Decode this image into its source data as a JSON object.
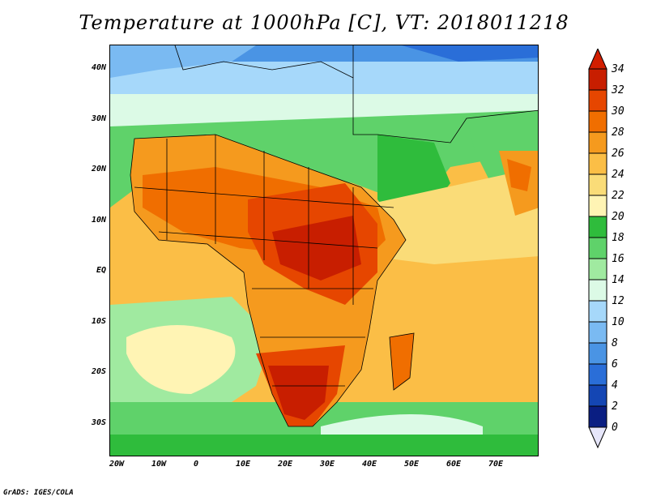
{
  "title": "Temperature at 1000hPa [C], VT: 2018011218",
  "footer": "GrADS: IGES/COLA",
  "map": {
    "variable": "Temperature at 1000hPa",
    "units": "C",
    "valid_time": "2018011218",
    "lon_labels": [
      "20W",
      "10W",
      "0",
      "10E",
      "20E",
      "30E",
      "40E",
      "50E",
      "60E",
      "70E"
    ],
    "lat_labels": [
      "40N",
      "30N",
      "20N",
      "10N",
      "EQ",
      "10S",
      "20S",
      "30S"
    ]
  },
  "colorbar": {
    "levels": [
      "34",
      "32",
      "30",
      "28",
      "26",
      "24",
      "22",
      "20",
      "18",
      "16",
      "14",
      "12",
      "10",
      "8",
      "6",
      "4",
      "2",
      "0"
    ],
    "colors_top_to_bottom": [
      "#c81e00",
      "#e64600",
      "#f06e00",
      "#f59a1e",
      "#fbbe46",
      "#fadc78",
      "#fff4b4",
      "#2fbc3c",
      "#5fd26a",
      "#a0eaa0",
      "#dcfae6",
      "#a6d8fa",
      "#7abaf2",
      "#4a94e4",
      "#2a6ed8",
      "#1446b4",
      "#0a1e82"
    ],
    "over_color": "#d21e00",
    "under_color": "#e6e6fa"
  }
}
